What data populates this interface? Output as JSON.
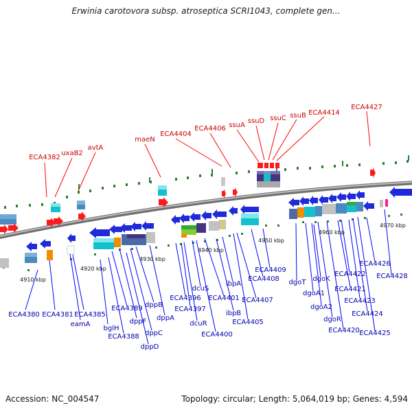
{
  "title": "Erwinia carotovora subsp. atroseptica SCRI1043, complete gen...",
  "footer": {
    "accession": "Accession: NC_004547",
    "summary": "Topology: circular; Length: 5,064,019 bp; Genes: 4,594"
  },
  "colors": {
    "top_labels": "#cc0000",
    "bottom_labels": "#0000aa",
    "backbone": "#8c8c8c",
    "tick_green": "#2e7d32",
    "forward_gene": "#ff1a1a",
    "reverse_gene": "#1f2bdb"
  },
  "scale_labels": [
    "4910 kbp",
    "4920 kbp",
    "4930 kbp",
    "4940 kbp",
    "4950 kbp",
    "4960 kbp",
    "4970 kbp"
  ],
  "top_labels": [
    "ECA4382",
    "uxaB2",
    "avtA",
    "maeN",
    "ECA4404",
    "ECA4406",
    "ssuA",
    "ssuD",
    "ssuC",
    "ssuB",
    "ECA4414",
    "ECA4427"
  ],
  "bottom_labels": [
    "ECA4380",
    "ECA4381",
    "ECA4385",
    "eamA",
    "bglH",
    "ECA4389",
    "ECA4388",
    "dppF",
    "dppB",
    "dppC",
    "dppD",
    "dppA",
    "ECA4396",
    "dcuS",
    "ECA4397",
    "dcuR",
    "ECA4401",
    "ECA4400",
    "ibpA",
    "ibpB",
    "ECA4405",
    "ECA4407",
    "ECA4408",
    "ECA4409",
    "dgoT",
    "dgoK",
    "dgoA1",
    "dgoA2",
    "dgoR",
    "ECA4420",
    "ECA4421",
    "ECA4422",
    "ECA4423",
    "ECA4424",
    "ECA4425",
    "ECA4426",
    "ECA4428"
  ]
}
